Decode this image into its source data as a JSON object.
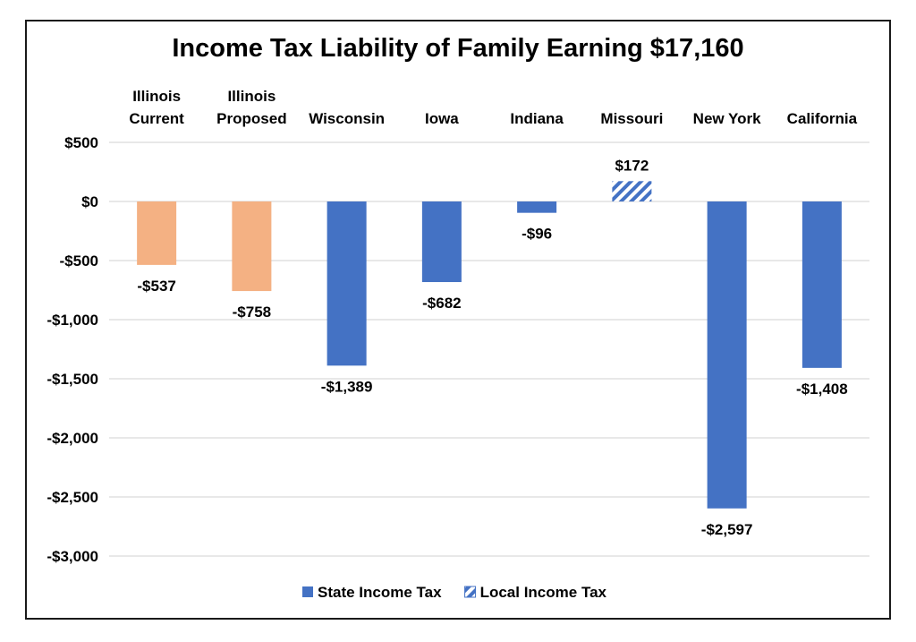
{
  "chart_data": {
    "type": "bar",
    "title": "Income Tax Liability of Family Earning $17,160",
    "categories": [
      [
        "Illinois",
        "Current"
      ],
      [
        "Illinois",
        "Proposed"
      ],
      [
        "Wisconsin"
      ],
      [
        "Iowa"
      ],
      [
        "Indiana"
      ],
      [
        "Missouri"
      ],
      [
        "New York"
      ],
      [
        "California"
      ]
    ],
    "values": [
      -537,
      -758,
      -1389,
      -682,
      -96,
      172,
      -2597,
      -1408
    ],
    "value_labels": [
      "-$537",
      "-$758",
      "-$1,389",
      "-$682",
      "-$96",
      "$172",
      "-$2,597",
      "-$1,408"
    ],
    "bar_kind": [
      "illinois",
      "illinois",
      "state",
      "state",
      "state",
      "local",
      "state",
      "state"
    ],
    "series": [
      {
        "name": "State Income Tax",
        "kind": "state"
      },
      {
        "name": "Local Income Tax",
        "kind": "local"
      }
    ],
    "ylim": [
      -3000,
      500
    ],
    "yticks": [
      500,
      0,
      -500,
      -1000,
      -1500,
      -2000,
      -2500,
      -3000
    ],
    "ytick_labels": [
      "$500",
      "$0",
      "-$500",
      "-$1,000",
      "-$1,500",
      "-$2,000",
      "-$2,500",
      "-$3,000"
    ],
    "xlabel": "",
    "ylabel": "",
    "grid": true,
    "legend_position": "bottom",
    "colors": {
      "state": "#4472C4",
      "local": "#4472C4",
      "illinois": "#F4B183",
      "grid": "#D9D9D9"
    }
  }
}
